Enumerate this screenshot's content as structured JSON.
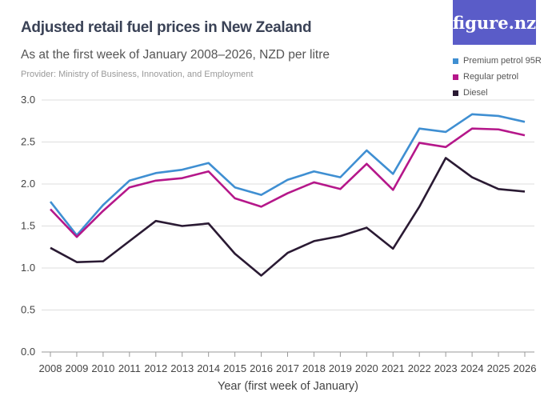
{
  "logo": "figure.nz",
  "chart_data": {
    "type": "line",
    "title": "Adjusted retail fuel prices in New Zealand",
    "subtitle": "As at the first week of January 2008–2026, NZD per litre",
    "provider": "Provider: Ministry of Business, Innovation, and Employment",
    "xlabel": "Year (first week of January)",
    "ylabel": "",
    "ylim": [
      0,
      3.0
    ],
    "yticks": [
      "0.0",
      "0.5",
      "1.0",
      "1.5",
      "2.0",
      "2.5",
      "3.0"
    ],
    "grid": true,
    "legend_position": "top-right",
    "x": [
      "2008",
      "2009",
      "2010",
      "2011",
      "2012",
      "2013",
      "2014",
      "2015",
      "2016",
      "2017",
      "2018",
      "2019",
      "2020",
      "2021",
      "2022",
      "2023",
      "2024",
      "2025",
      "2026"
    ],
    "series": [
      {
        "name": "Premium petrol 95R",
        "color": "#3f8fd2",
        "values": [
          1.79,
          1.39,
          1.75,
          2.04,
          2.13,
          2.17,
          2.25,
          1.96,
          1.87,
          2.05,
          2.15,
          2.08,
          2.4,
          2.12,
          2.66,
          2.62,
          2.83,
          2.81,
          2.74
        ]
      },
      {
        "name": "Regular petrol",
        "color": "#b5178a",
        "values": [
          1.7,
          1.37,
          1.68,
          1.96,
          2.04,
          2.07,
          2.15,
          1.83,
          1.73,
          1.89,
          2.02,
          1.94,
          2.24,
          1.93,
          2.49,
          2.44,
          2.66,
          2.65,
          2.58
        ]
      },
      {
        "name": "Diesel",
        "color": "#2a1a33",
        "values": [
          1.24,
          1.07,
          1.08,
          1.32,
          1.56,
          1.5,
          1.53,
          1.17,
          0.91,
          1.18,
          1.32,
          1.38,
          1.48,
          1.23,
          1.73,
          2.31,
          2.08,
          1.94,
          1.91
        ]
      }
    ]
  }
}
